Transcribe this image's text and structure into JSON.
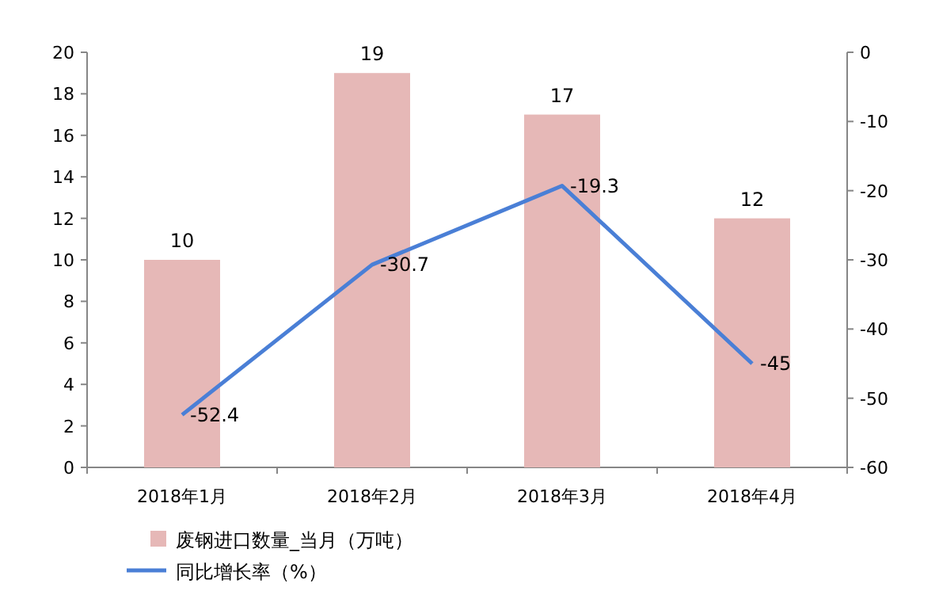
{
  "chart_data": {
    "type": "bar",
    "categories": [
      "2018年1月",
      "2018年2月",
      "2018年3月",
      "2018年4月"
    ],
    "series": [
      {
        "name": "废钢进口数量_当月（万吨）",
        "color": "#e6b8b7",
        "values": [
          10,
          19,
          17,
          12
        ]
      },
      {
        "name": "同比增长率（%）",
        "type": "line",
        "axis": "y2",
        "color": "#4a7fd6",
        "values": [
          -52.4,
          -30.7,
          -19.3,
          -45
        ]
      }
    ],
    "ylim": [
      0,
      20
    ],
    "yticks": [
      0,
      2,
      4,
      6,
      8,
      10,
      12,
      14,
      16,
      18,
      20
    ],
    "y2lim": [
      -60,
      0
    ],
    "y2ticks": [
      -60,
      -50,
      -40,
      -30,
      -20,
      -10,
      0
    ],
    "data_labels": true,
    "legend": "bottom"
  }
}
